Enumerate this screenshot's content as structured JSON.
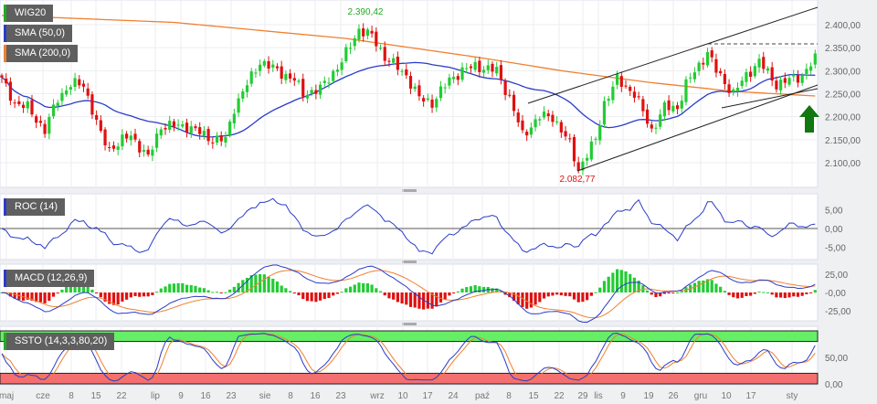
{
  "legend": {
    "main": "WIG20",
    "sma50": "SMA (50,0)",
    "sma200": "SMA (200,0)",
    "roc": "ROC (14)",
    "macd": "MACD (12,26,9)",
    "ssto": "SSTO (14,3,3,80,20)"
  },
  "colors": {
    "up": "#22cc33",
    "down": "#e01010",
    "sma50": "#2a3cc8",
    "sma200": "#f08030",
    "wig": "#22aa22",
    "arrow": "#117711"
  },
  "annotations": {
    "high": "2.390,42",
    "low": "2.082,77"
  },
  "chart_data": {
    "type": "candlestick",
    "title": "WIG20",
    "ylim": [
      2060,
      2440
    ],
    "price_ticks": [
      "2.400,00",
      "2.350,00",
      "2.300,00",
      "2.250,00",
      "2.200,00",
      "2.150,00",
      "2.100,00"
    ],
    "price_tick_values": [
      2400,
      2350,
      2300,
      2250,
      2200,
      2150,
      2100
    ],
    "roc_ticks": [
      "5,00",
      "0,00",
      "-5,00"
    ],
    "macd_ticks": [
      "25,00",
      "-0,00",
      "-25,00"
    ],
    "ssto_ticks": [
      "50,00",
      "0,00"
    ],
    "x_labels": [
      "maj",
      "cze",
      "8",
      "15",
      "22",
      "lip",
      "9",
      "16",
      "23",
      "sie",
      "8",
      "16",
      "23",
      "wrz",
      "10",
      "17",
      "24",
      "paź",
      "8",
      "15",
      "22",
      "29",
      "lis",
      "9",
      "19",
      "26",
      "gru",
      "10",
      "17",
      "sty"
    ],
    "close_anchors": [
      [
        0,
        2280
      ],
      [
        3,
        2230
      ],
      [
        6,
        2220
      ],
      [
        10,
        2170
      ],
      [
        13,
        2240
      ],
      [
        16,
        2270
      ],
      [
        19,
        2270
      ],
      [
        23,
        2160
      ],
      [
        25,
        2130
      ],
      [
        30,
        2160
      ],
      [
        34,
        2110
      ],
      [
        37,
        2180
      ],
      [
        43,
        2180
      ],
      [
        49,
        2150
      ],
      [
        52,
        2150
      ],
      [
        54,
        2220
      ],
      [
        57,
        2270
      ],
      [
        60,
        2320
      ],
      [
        64,
        2300
      ],
      [
        68,
        2280
      ],
      [
        70,
        2250
      ],
      [
        74,
        2260
      ],
      [
        79,
        2320
      ],
      [
        83,
        2390
      ],
      [
        86,
        2375
      ],
      [
        89,
        2330
      ],
      [
        94,
        2290
      ],
      [
        97,
        2240
      ],
      [
        100,
        2230
      ],
      [
        104,
        2280
      ],
      [
        107,
        2300
      ],
      [
        110,
        2310
      ],
      [
        115,
        2300
      ],
      [
        118,
        2240
      ],
      [
        121,
        2160
      ],
      [
        125,
        2200
      ],
      [
        128,
        2200
      ],
      [
        132,
        2140
      ],
      [
        134,
        2085
      ],
      [
        138,
        2150
      ],
      [
        140,
        2230
      ],
      [
        143,
        2280
      ],
      [
        147,
        2250
      ],
      [
        151,
        2170
      ],
      [
        154,
        2220
      ],
      [
        157,
        2220
      ],
      [
        159,
        2270
      ],
      [
        164,
        2340
      ],
      [
        166,
        2300
      ],
      [
        170,
        2250
      ],
      [
        173,
        2290
      ],
      [
        176,
        2320
      ],
      [
        180,
        2270
      ],
      [
        183,
        2280
      ],
      [
        186,
        2290
      ],
      [
        189,
        2325
      ]
    ],
    "sma200_anchors": [
      [
        0,
        2420
      ],
      [
        40,
        2405
      ],
      [
        80,
        2370
      ],
      [
        110,
        2330
      ],
      [
        130,
        2300
      ],
      [
        150,
        2275
      ],
      [
        170,
        2255
      ],
      [
        189,
        2245
      ]
    ]
  }
}
